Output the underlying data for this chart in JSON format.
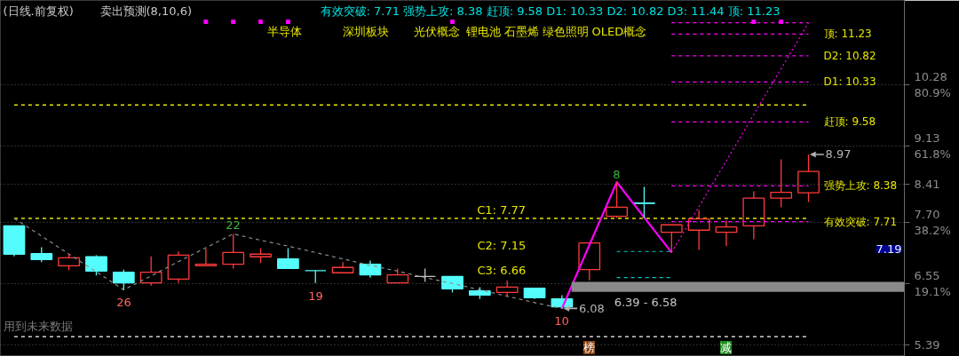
{
  "chart_data": {
    "type": "candlestick",
    "title": "(日线.前复权)",
    "subtitle": "卖出预测(8,10,6)",
    "categories": [
      null,
      null,
      null,
      null,
      null,
      null,
      null,
      null,
      null,
      null,
      null,
      null,
      null,
      null,
      null,
      null,
      null,
      null,
      null,
      null,
      null,
      null,
      null,
      null,
      null,
      null,
      null,
      null,
      null,
      null,
      null,
      null,
      null
    ],
    "ohlc": [
      [
        7.63,
        7.63,
        7.06,
        7.1
      ],
      [
        7.11,
        7.23,
        6.95,
        7.0
      ],
      [
        6.88,
        7.1,
        6.8,
        7.03
      ],
      [
        7.05,
        7.08,
        6.7,
        6.78
      ],
      [
        6.76,
        6.81,
        6.43,
        6.56
      ],
      [
        6.56,
        7.06,
        6.51,
        6.76
      ],
      [
        6.63,
        7.15,
        6.56,
        7.08
      ],
      [
        6.88,
        7.2,
        6.88,
        6.91
      ],
      [
        6.91,
        7.48,
        6.83,
        7.13
      ],
      [
        7.05,
        7.21,
        6.93,
        7.1
      ],
      [
        7.01,
        7.21,
        6.83,
        6.83
      ],
      [
        6.79,
        6.79,
        6.56,
        6.79
      ],
      [
        6.75,
        6.95,
        6.75,
        6.85
      ],
      [
        6.91,
        6.98,
        6.66,
        6.71
      ],
      [
        6.56,
        6.83,
        6.56,
        6.71
      ],
      [
        6.68,
        6.83,
        6.58,
        6.68
      ],
      [
        6.68,
        6.68,
        6.38,
        6.45
      ],
      [
        6.41,
        6.48,
        6.26,
        6.33
      ],
      [
        6.38,
        6.61,
        6.3,
        6.48
      ],
      [
        6.46,
        6.46,
        6.26,
        6.28
      ],
      [
        6.26,
        6.33,
        6.08,
        6.11
      ],
      [
        6.81,
        7.31,
        6.61,
        7.31
      ],
      [
        7.81,
        8.45,
        7.78,
        7.98
      ],
      [
        8.06,
        8.36,
        7.78,
        8.05
      ],
      [
        7.51,
        7.65,
        7.13,
        7.65
      ],
      [
        7.55,
        7.93,
        7.18,
        7.76
      ],
      [
        7.51,
        7.73,
        7.25,
        7.61
      ],
      [
        7.63,
        8.28,
        7.38,
        8.15
      ],
      [
        8.15,
        8.88,
        7.98,
        8.26
      ],
      [
        8.25,
        8.97,
        8.08,
        8.65
      ],
      null,
      null,
      null
    ],
    "colors": [
      "#54fcfc",
      "#54fcfc",
      "#ff3b3b",
      "#54fcfc",
      "#54fcfc",
      "#ff3b3b",
      "#ff3b3b",
      "#ff3b3b",
      "#ff3b3b",
      "#ff3b3b",
      "#54fcfc",
      "#54fcfc",
      "#ff3b3b",
      "#54fcfc",
      "#ff3b3b",
      "#c0c0c0",
      "#54fcfc",
      "#54fcfc",
      "#ff3b3b",
      "#54fcfc",
      "#54fcfc",
      "#ff3b3b",
      "#ff3b3b",
      "#54fcfc",
      "#ff3b3b",
      "#ff3b3b",
      "#ff3b3b",
      "#ff3b3b",
      "#ff3b3b",
      "#ff3b3b",
      null,
      null,
      null
    ],
    "series": [
      {
        "type": "line",
        "color": "#8c8c8c",
        "line_style": "dashed",
        "values": [
          7.77,
          7.44,
          7.1,
          6.77,
          6.43,
          6.69,
          6.96,
          7.22,
          7.48,
          7.36,
          7.25,
          7.13,
          7.01,
          6.89,
          6.78,
          6.66,
          6.55,
          6.43,
          6.31,
          6.19,
          6.08,
          null,
          null,
          null,
          null,
          null,
          null,
          null,
          null,
          null,
          null,
          null,
          null
        ]
      },
      {
        "type": "line",
        "color": "#ff00ff",
        "line_style": "solid",
        "values": [
          null,
          null,
          null,
          null,
          null,
          null,
          null,
          null,
          null,
          null,
          null,
          null,
          null,
          null,
          null,
          null,
          null,
          null,
          null,
          null,
          6.08,
          7.27,
          8.45,
          7.79,
          7.13,
          null,
          null,
          null,
          null,
          null,
          null,
          null,
          null
        ]
      },
      {
        "type": "line",
        "color": "#ff00ff",
        "line_style": "dotted",
        "values": [
          null,
          null,
          null,
          null,
          null,
          null,
          null,
          null,
          null,
          null,
          null,
          null,
          null,
          null,
          null,
          null,
          null,
          null,
          null,
          null,
          null,
          null,
          null,
          null,
          7.13,
          7.99,
          8.85,
          9.72,
          10.58,
          11.44,
          null,
          null,
          null
        ]
      },
      {
        "type": "line",
        "color": "#ff00ff",
        "line_style": "dashed",
        "values": [
          null,
          null,
          null,
          null,
          null,
          null,
          null,
          null,
          null,
          null,
          null,
          null,
          null,
          null,
          null,
          null,
          null,
          null,
          null,
          null,
          null,
          null,
          null,
          null,
          11.44,
          11.44,
          11.44,
          11.44,
          11.44,
          11.44,
          null,
          null,
          null
        ]
      },
      {
        "type": "line",
        "color": "#ff00ff",
        "line_style": "dashed",
        "values": [
          null,
          null,
          null,
          null,
          null,
          null,
          null,
          null,
          null,
          null,
          null,
          null,
          null,
          null,
          null,
          null,
          null,
          null,
          null,
          null,
          null,
          null,
          null,
          null,
          11.23,
          11.23,
          11.23,
          11.23,
          11.23,
          11.23,
          null,
          null,
          null
        ],
        "value_labels": [
          null,
          null,
          null,
          null,
          null,
          null,
          null,
          null,
          null,
          null,
          null,
          null,
          null,
          null,
          null,
          null,
          null,
          null,
          null,
          null,
          null,
          null,
          null,
          null,
          null,
          null,
          null,
          null,
          null,
          "顶: 11.23",
          null,
          null,
          null
        ]
      },
      {
        "type": "line",
        "color": "#ff00ff",
        "line_style": "dashed",
        "values": [
          null,
          null,
          null,
          null,
          null,
          null,
          null,
          null,
          null,
          null,
          null,
          null,
          null,
          null,
          null,
          null,
          null,
          null,
          null,
          null,
          null,
          null,
          null,
          null,
          10.82,
          10.82,
          10.82,
          10.82,
          10.82,
          10.82,
          null,
          null,
          null
        ],
        "value_labels": [
          null,
          null,
          null,
          null,
          null,
          null,
          null,
          null,
          null,
          null,
          null,
          null,
          null,
          null,
          null,
          null,
          null,
          null,
          null,
          null,
          null,
          null,
          null,
          null,
          null,
          null,
          null,
          null,
          null,
          "D2: 10.82",
          null,
          null,
          null
        ]
      },
      {
        "type": "line",
        "color": "#ff00ff",
        "line_style": "dashed",
        "values": [
          null,
          null,
          null,
          null,
          null,
          null,
          null,
          null,
          null,
          null,
          null,
          null,
          null,
          null,
          null,
          null,
          null,
          null,
          null,
          null,
          null,
          null,
          null,
          null,
          10.33,
          10.33,
          10.33,
          10.33,
          10.33,
          10.33,
          null,
          null,
          null
        ],
        "value_labels": [
          null,
          null,
          null,
          null,
          null,
          null,
          null,
          null,
          null,
          null,
          null,
          null,
          null,
          null,
          null,
          null,
          null,
          null,
          null,
          null,
          null,
          null,
          null,
          null,
          null,
          null,
          null,
          null,
          null,
          "D1: 10.33",
          null,
          null,
          null
        ]
      },
      {
        "type": "line",
        "color": "#ff00ff",
        "line_style": "dashed",
        "values": [
          null,
          null,
          null,
          null,
          null,
          null,
          null,
          null,
          null,
          null,
          null,
          null,
          null,
          null,
          null,
          null,
          null,
          null,
          null,
          null,
          null,
          null,
          null,
          null,
          9.58,
          9.58,
          9.58,
          9.58,
          9.58,
          9.58,
          null,
          null,
          null
        ],
        "value_labels": [
          null,
          null,
          null,
          null,
          null,
          null,
          null,
          null,
          null,
          null,
          null,
          null,
          null,
          null,
          null,
          null,
          null,
          null,
          null,
          null,
          null,
          null,
          null,
          null,
          null,
          null,
          null,
          null,
          null,
          "赶顶: 9.58",
          null,
          null,
          null
        ]
      },
      {
        "type": "line",
        "color": "#ff00ff",
        "line_style": "dashed",
        "values": [
          null,
          null,
          null,
          null,
          null,
          null,
          null,
          null,
          null,
          null,
          null,
          null,
          null,
          null,
          null,
          null,
          null,
          null,
          null,
          null,
          null,
          null,
          null,
          null,
          8.38,
          8.38,
          8.38,
          8.38,
          8.38,
          8.38,
          null,
          null,
          null
        ],
        "value_labels": [
          null,
          null,
          null,
          null,
          null,
          null,
          null,
          null,
          null,
          null,
          null,
          null,
          null,
          null,
          null,
          null,
          null,
          null,
          null,
          null,
          null,
          null,
          null,
          null,
          null,
          null,
          null,
          null,
          null,
          "强势上攻: 8.38",
          null,
          null,
          null
        ]
      },
      {
        "type": "line",
        "color": "#ff00ff",
        "line_style": "dashed",
        "values": [
          null,
          null,
          null,
          null,
          null,
          null,
          null,
          null,
          null,
          null,
          null,
          null,
          null,
          null,
          null,
          null,
          null,
          null,
          null,
          null,
          null,
          null,
          null,
          null,
          7.71,
          7.71,
          7.71,
          7.71,
          7.71,
          7.71,
          null,
          null,
          null
        ],
        "value_labels": [
          null,
          null,
          null,
          null,
          null,
          null,
          null,
          null,
          null,
          null,
          null,
          null,
          null,
          null,
          null,
          null,
          null,
          null,
          null,
          null,
          null,
          null,
          null,
          null,
          null,
          null,
          null,
          null,
          null,
          "有效突破: 7.71",
          null,
          null,
          null
        ]
      },
      {
        "type": "line",
        "color": "#00c8c8",
        "line_style": "dashed",
        "values": [
          null,
          null,
          null,
          null,
          null,
          null,
          null,
          null,
          null,
          null,
          null,
          null,
          null,
          null,
          null,
          null,
          null,
          null,
          null,
          null,
          null,
          null,
          7.15,
          7.15,
          7.15,
          null,
          null,
          null,
          null,
          null,
          null,
          null,
          null
        ]
      },
      {
        "type": "line",
        "color": "#00c8c8",
        "line_style": "dashed",
        "values": [
          null,
          null,
          null,
          null,
          null,
          null,
          null,
          null,
          null,
          null,
          null,
          null,
          null,
          null,
          null,
          null,
          null,
          null,
          null,
          null,
          null,
          null,
          6.66,
          6.66,
          6.66,
          null,
          null,
          null,
          null,
          null,
          null,
          null,
          null
        ]
      },
      {
        "type": "scatter",
        "marker": "none",
        "color": "#b4b4b4",
        "values": [
          null,
          null,
          null,
          null,
          null,
          null,
          null,
          null,
          null,
          null,
          null,
          null,
          null,
          null,
          null,
          null,
          null,
          null,
          null,
          null,
          6.08,
          null,
          null,
          null,
          null,
          null,
          null,
          null,
          null,
          8.97,
          null,
          null,
          null
        ],
        "value_labels": [
          null,
          null,
          null,
          null,
          null,
          null,
          null,
          null,
          null,
          null,
          null,
          null,
          null,
          null,
          null,
          null,
          null,
          null,
          null,
          null,
          "6.08",
          null,
          null,
          null,
          null,
          null,
          null,
          null,
          null,
          "8.97",
          null,
          null,
          null
        ]
      },
      {
        "type": "scatter",
        "marker": "square",
        "color": "#ff00ff",
        "values": [
          null,
          null,
          null,
          null,
          null,
          null,
          null,
          11.46,
          11.46,
          11.46,
          11.46,
          null,
          null,
          null,
          null,
          null,
          11.46,
          null,
          null,
          null,
          null,
          null,
          null,
          null,
          null,
          null,
          null,
          11.46,
          11.46,
          null,
          null,
          null,
          null
        ]
      }
    ],
    "ref_lines": [
      {
        "axis": "y",
        "value": 9.9,
        "color": "#e6e600",
        "line_style": "dashed"
      },
      {
        "axis": "y",
        "value": 7.77,
        "color": "#e6e600",
        "line_style": "dashed",
        "label": "C1: 7.77"
      },
      {
        "axis": "y",
        "value": 5.55,
        "color": "#d0d0d0",
        "line_style": "dashed"
      }
    ],
    "bands": [
      {
        "axis": "y",
        "from": 6.39,
        "to": 6.58,
        "label": "6.39 - 6.58",
        "color": "#8a8a8a"
      }
    ],
    "annotations": [
      "有效突破: 7.71 强势上攻: 8.38 赶顶: 9.58 D1: 10.33 D2: 10.82 D3: 11.44 顶: 11.23",
      "半导体",
      "深圳板块",
      "光伏概念",
      "锂电池",
      "石墨烯",
      "绿色照明",
      "OLED概念",
      "C2: 7.15",
      "C3: 6.66",
      "26",
      "22",
      "19",
      "10",
      "8",
      "用到未来数据",
      "榜",
      "减",
      "7.19"
    ],
    "ylim": [
      5.18,
      11.86
    ],
    "yticks": [
      {
        "value": 10.28,
        "label": "10.28\n80.9%"
      },
      {
        "value": 9.13,
        "label": "9.13\n61.8%"
      },
      8.41,
      {
        "value": 7.7,
        "label": "7.70\n38.2%"
      },
      {
        "value": 6.55,
        "label": "6.55\n19.1%"
      },
      5.39
    ],
    "grid": "y",
    "tick_labels": "y"
  }
}
